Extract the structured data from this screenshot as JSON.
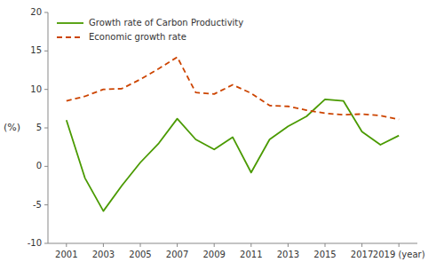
{
  "chart_data": {
    "type": "line",
    "y_label": "(%)",
    "x": [
      2001,
      2002,
      2003,
      2004,
      2005,
      2006,
      2007,
      2008,
      2009,
      2010,
      2011,
      2012,
      2013,
      2014,
      2015,
      2016,
      2017,
      2018,
      2019
    ],
    "series": [
      {
        "name": "Growth rate of Carbon Productivity",
        "color": "#4a9a00",
        "line_style": "solid",
        "values": [
          6.0,
          -1.5,
          -5.8,
          -2.5,
          0.5,
          3.0,
          6.2,
          3.5,
          2.2,
          3.8,
          -0.8,
          3.5,
          5.2,
          6.5,
          8.7,
          8.5,
          4.5,
          2.8,
          4.0
        ]
      },
      {
        "name": "Economic growth rate",
        "color": "#cc4400",
        "line_style": "dashed",
        "values": [
          8.5,
          9.1,
          10.0,
          10.1,
          11.3,
          12.7,
          14.2,
          9.6,
          9.4,
          10.6,
          9.5,
          7.9,
          7.8,
          7.3,
          6.9,
          6.7,
          6.8,
          6.6,
          6.1
        ]
      }
    ],
    "xlim": [
      2000,
      2020
    ],
    "xticks": [
      2001,
      2003,
      2005,
      2007,
      2009,
      2011,
      2013,
      2015,
      2017,
      {
        "value": 2019,
        "label": "2019 (year)"
      }
    ],
    "ylim": [
      -10,
      20
    ],
    "yticks": [
      -10,
      -5,
      0,
      5,
      10,
      15,
      20
    ],
    "grid": false,
    "legend": "upper-left"
  }
}
